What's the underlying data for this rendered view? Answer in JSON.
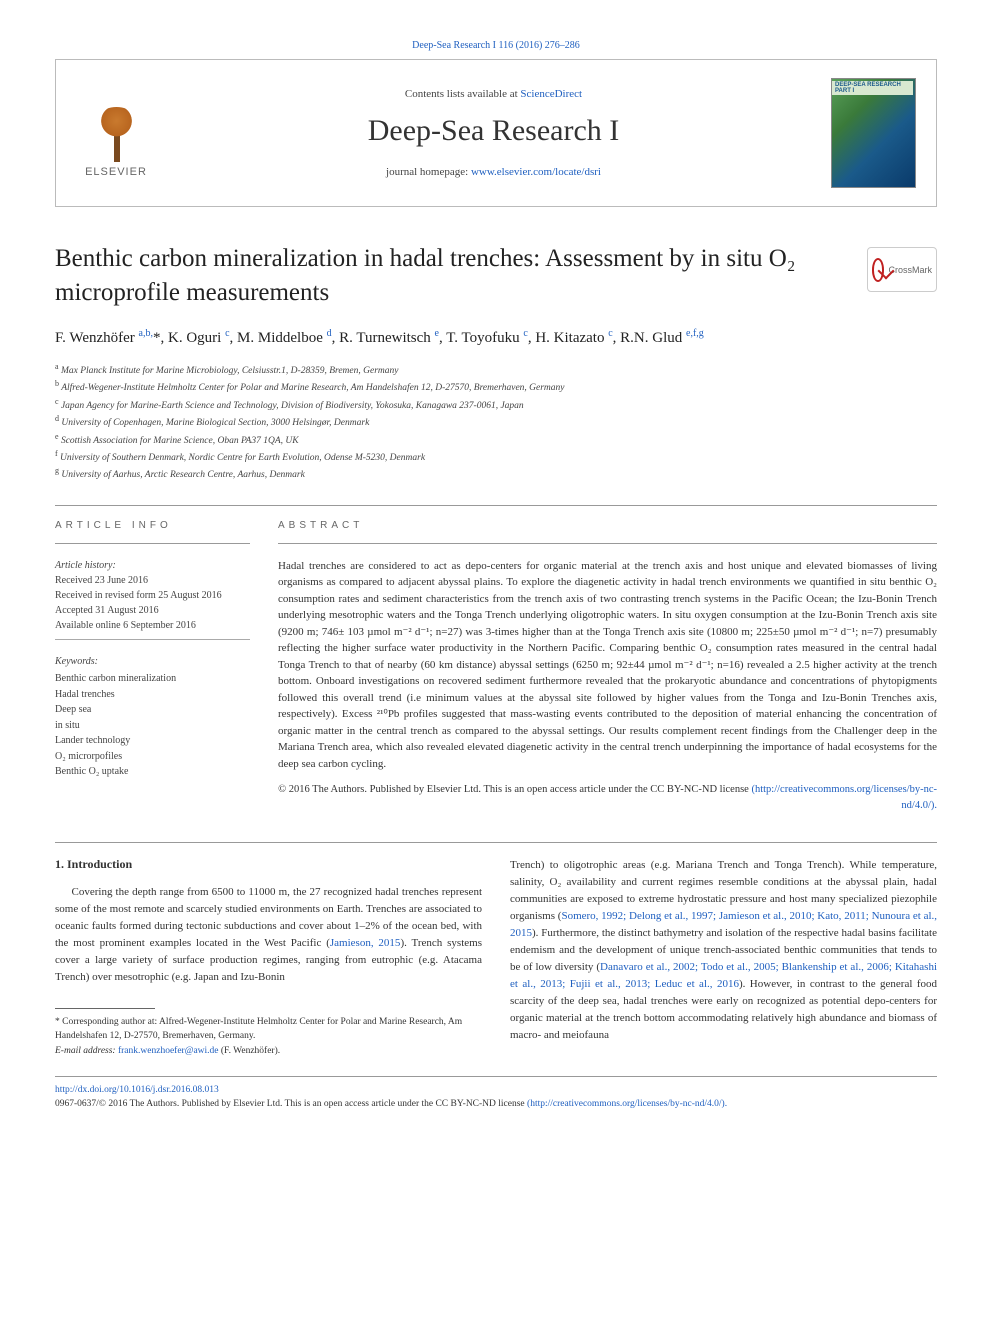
{
  "page_header": {
    "citation": "Deep-Sea Research I 116 (2016) 276–286",
    "contents_prefix": "Contents lists available at ",
    "contents_link": "ScienceDirect",
    "journal_name": "Deep-Sea Research I",
    "homepage_prefix": "journal homepage: ",
    "homepage_link": "www.elsevier.com/locate/dsri",
    "publisher_name": "ELSEVIER",
    "cover_label": "DEEP-SEA RESEARCH PART I"
  },
  "crossmark": {
    "label": "CrossMark"
  },
  "article": {
    "title": "Benthic carbon mineralization in hadal trenches: Assessment by in situ O₂ microprofile measurements",
    "authors_html": "F. Wenzhöfer <sup>a,b,</sup>*, K. Oguri <sup>c</sup>, M. Middelboe <sup>d</sup>, R. Turnewitsch <sup>e</sup>, T. Toyofuku <sup>c</sup>, H. Kitazato <sup>c</sup>, R.N. Glud <sup>e,f,g</sup>",
    "affiliations": [
      "a Max Planck Institute for Marine Microbiology, Celsiusstr.1, D-28359, Bremen, Germany",
      "b Alfred-Wegener-Institute Helmholtz Center for Polar and Marine Research, Am Handelshafen 12, D-27570, Bremerhaven, Germany",
      "c Japan Agency for Marine-Earth Science and Technology, Division of Biodiversity, Yokosuka, Kanagawa 237-0061, Japan",
      "d University of Copenhagen, Marine Biological Section, 3000 Helsingør, Denmark",
      "e Scottish Association for Marine Science, Oban PA37 1QA, UK",
      "f University of Southern Denmark, Nordic Centre for Earth Evolution, Odense M-5230, Denmark",
      "g University of Aarhus, Arctic Research Centre, Aarhus, Denmark"
    ]
  },
  "article_info": {
    "heading": "ARTICLE INFO",
    "history_label": "Article history:",
    "history": [
      "Received 23 June 2016",
      "Received in revised form 25 August 2016",
      "Accepted 31 August 2016",
      "Available online 6 September 2016"
    ],
    "keywords_label": "Keywords:",
    "keywords": [
      "Benthic carbon mineralization",
      "Hadal trenches",
      "Deep sea",
      "in situ",
      "Lander technology",
      "O₂ microrpofiles",
      "Benthic O₂ uptake"
    ]
  },
  "abstract": {
    "heading": "ABSTRACT",
    "text": "Hadal trenches are considered to act as depo-centers for organic material at the trench axis and host unique and elevated biomasses of living organisms as compared to adjacent abyssal plains. To explore the diagenetic activity in hadal trench environments we quantified in situ benthic O₂ consumption rates and sediment characteristics from the trench axis of two contrasting trench systems in the Pacific Ocean; the Izu-Bonin Trench underlying mesotrophic waters and the Tonga Trench underlying oligotrophic waters. In situ oxygen consumption at the Izu-Bonin Trench axis site (9200 m; 746± 103 µmol m⁻² d⁻¹; n=27) was 3-times higher than at the Tonga Trench axis site (10800 m; 225±50 µmol m⁻² d⁻¹; n=7) presumably reflecting the higher surface water productivity in the Northern Pacific. Comparing benthic O₂ consumption rates measured in the central hadal Tonga Trench to that of nearby (60 km distance) abyssal settings (6250 m; 92±44 µmol m⁻² d⁻¹; n=16) revealed a 2.5 higher activity at the trench bottom. Onboard investigations on recovered sediment furthermore revealed that the prokaryotic abundance and concentrations of phytopigments followed this overall trend (i.e minimum values at the abyssal site followed by higher values from the Tonga and Izu-Bonin Trenches axis, respectively). Excess ²¹⁰Pb profiles suggested that mass-wasting events contributed to the deposition of material enhancing the concentration of organic matter in the central trench as compared to the abyssal settings. Our results complement recent findings from the Challenger deep in the Mariana Trench area, which also revealed elevated diagenetic activity in the central trench underpinning the importance of hadal ecosystems for the deep sea carbon cycling.",
    "copyright": "© 2016 The Authors. Published by Elsevier Ltd. This is an open access article under the CC BY-NC-ND license ",
    "copyright_link": "(http://creativecommons.org/licenses/by-nc-nd/4.0/)."
  },
  "body": {
    "section_number": "1.",
    "section_title": "Introduction",
    "col1": "Covering the depth range from 6500 to 11000 m, the 27 recognized hadal trenches represent some of the most remote and scarcely studied environments on Earth. Trenches are associated to oceanic faults formed during tectonic subductions and cover about 1–2% of the ocean bed, with the most prominent examples located in the West Pacific (Jamieson, 2015). Trench systems cover a large variety of surface production regimes, ranging from eutrophic (e.g. Atacama Trench) over mesotrophic (e.g. Japan and Izu-Bonin",
    "col2": "Trench) to oligotrophic areas (e.g. Mariana Trench and Tonga Trench). While temperature, salinity, O₂ availability and current regimes resemble conditions at the abyssal plain, hadal communities are exposed to extreme hydrostatic pressure and host many specialized piezophile organisms (Somero, 1992; Delong et al., 1997; Jamieson et al., 2010; Kato, 2011; Nunoura et al., 2015). Furthermore, the distinct bathymetry and isolation of the respective hadal basins facilitate endemism and the development of unique trench-associated benthic communities that tends to be of low diversity (Danavaro et al., 2002; Todo et al., 2005; Blankenship et al., 2006; Kitahashi et al., 2013; Fujii et al., 2013; Leduc et al., 2016). However, in contrast to the general food scarcity of the deep sea, hadal trenches were early on recognized as potential depo-centers for organic material at the trench bottom accommodating relatively high abundance and biomass of macro- and meiofauna"
  },
  "footnote": {
    "corr": "* Corresponding author at: Alfred-Wegener-Institute Helmholtz Center for Polar and Marine Research, Am Handelshafen 12, D-27570, Bremerhaven, Germany.",
    "email_label": "E-mail address: ",
    "email": "frank.wenzhoefer@awi.de",
    "email_suffix": " (F. Wenzhöfer)."
  },
  "footer": {
    "doi": "http://dx.doi.org/10.1016/j.dsr.2016.08.013",
    "issn_line": "0967-0637/© 2016 The Authors. Published by Elsevier Ltd. This is an open access article under the CC BY-NC-ND license ",
    "license_link": "(http://creativecommons.org/licenses/by-nc-nd/4.0/)."
  },
  "colors": {
    "link": "#2060c0",
    "text": "#333333",
    "border": "#bbbbbb",
    "elsevier_orange": "#c97a2e"
  }
}
